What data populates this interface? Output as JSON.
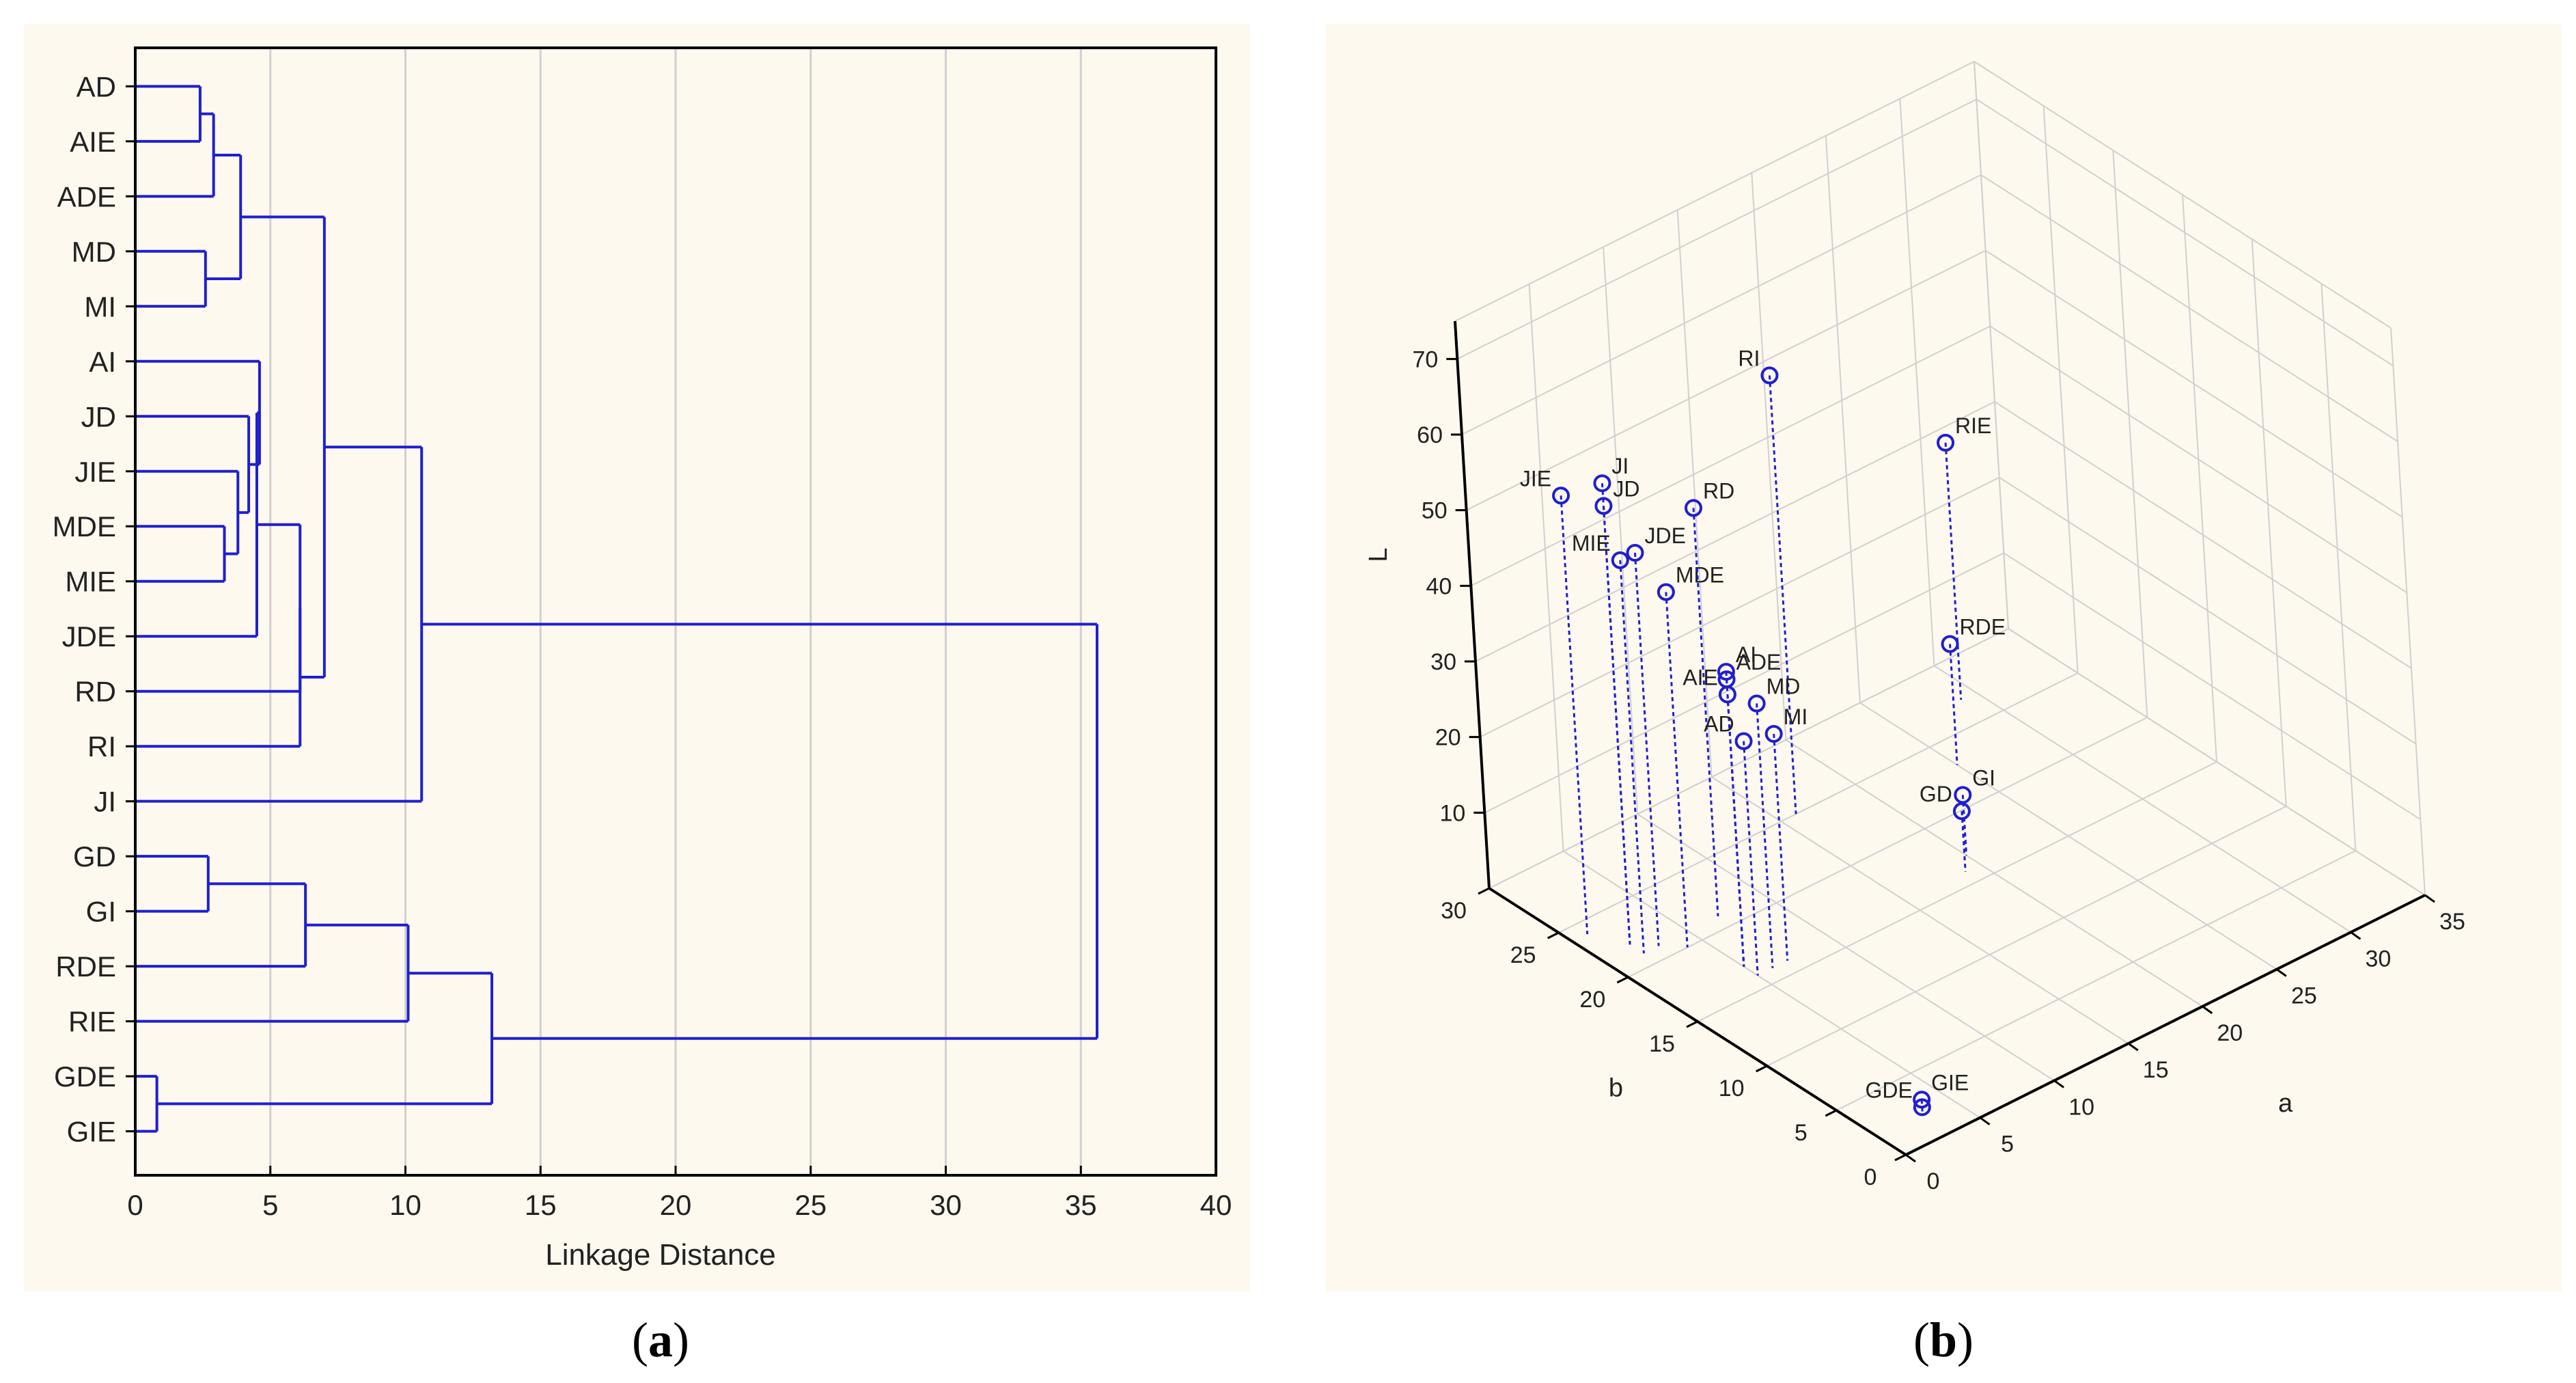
{
  "colors": {
    "series": "#1f1fcf",
    "grid": "#d0d0d0",
    "axis": "#000000",
    "panel_bg": "#fdf9ef"
  },
  "captions": {
    "a_open": "(",
    "a_letter": "a",
    "a_close": ")",
    "b_open": "(",
    "b_letter": "b",
    "b_close": ")"
  },
  "chart_data": [
    {
      "type": "dendrogram",
      "panel": "a",
      "xlabel": "Linkage Distance",
      "xlim": [
        0,
        40
      ],
      "xticks": [
        0,
        5,
        10,
        15,
        20,
        25,
        30,
        35,
        40
      ],
      "grid": "vertical",
      "leaves": [
        "AD",
        "AIE",
        "ADE",
        "MD",
        "MI",
        "AI",
        "JD",
        "JIE",
        "MDE",
        "MIE",
        "JDE",
        "RD",
        "RI",
        "JI",
        "GD",
        "GI",
        "RDE",
        "RIE",
        "GDE",
        "GIE"
      ],
      "merges": [
        {
          "a": "AD",
          "b": "AIE",
          "distance": 2.4
        },
        {
          "a": "AD+AIE",
          "b": "ADE",
          "distance": 2.9
        },
        {
          "a": "MD",
          "b": "MI",
          "distance": 2.6
        },
        {
          "a": "AD+AIE+ADE",
          "b": "MD+MI",
          "distance": 3.9
        },
        {
          "a": "MDE",
          "b": "MIE",
          "distance": 3.3
        },
        {
          "a": "MDE+MIE",
          "b": "JIE",
          "distance": 3.8
        },
        {
          "a": "JD",
          "b": "JIE+MDE+MIE",
          "distance": 4.2
        },
        {
          "a": "AI",
          "b": "JD+JIE+MDE+MIE",
          "distance": 4.6
        },
        {
          "a": "AI+JD+JIE+MDE+MIE",
          "b": "JDE",
          "distance": 4.5
        },
        {
          "a": "AI..JDE",
          "b": "RD",
          "distance": 6.1
        },
        {
          "a": "AI..RD",
          "b": "RI",
          "distance": 6.1
        },
        {
          "a": "AD..MI",
          "b": "AI..RI",
          "distance": 7.0
        },
        {
          "a": "AD..RI",
          "b": "JI",
          "distance": 10.6
        },
        {
          "a": "GD",
          "b": "GI",
          "distance": 2.7
        },
        {
          "a": "GD+GI",
          "b": "RDE",
          "distance": 6.3
        },
        {
          "a": "GD+GI+RDE",
          "b": "RIE",
          "distance": 10.1
        },
        {
          "a": "GDE",
          "b": "GIE",
          "distance": 0.8
        },
        {
          "a": "GD..RIE",
          "b": "GDE+GIE",
          "distance": 13.2
        },
        {
          "a": "AD..JI",
          "b": "GD..GIE",
          "distance": 35.6
        }
      ]
    },
    {
      "type": "scatter3d",
      "panel": "b",
      "xlabel": "a",
      "ylabel": "b",
      "zlabel": "L",
      "xlim": [
        0,
        35
      ],
      "ylim": [
        0,
        30
      ],
      "zlim": [
        0,
        70
      ],
      "xticks": [
        0,
        5,
        10,
        15,
        20,
        25,
        30,
        35
      ],
      "yticks": [
        0,
        5,
        10,
        15,
        20,
        25,
        30
      ],
      "zticks": [
        10,
        20,
        30,
        40,
        50,
        60,
        70
      ],
      "points": [
        {
          "label": "JI",
          "a": 2,
          "b": 22,
          "L": 61
        },
        {
          "label": "JD",
          "a": 2,
          "b": 22,
          "L": 58
        },
        {
          "label": "JIE",
          "a": 1,
          "b": 24,
          "L": 58
        },
        {
          "label": "MIE",
          "a": 2,
          "b": 21,
          "L": 52
        },
        {
          "label": "JDE",
          "a": 3,
          "b": 21,
          "L": 52
        },
        {
          "label": "MDE",
          "a": 4,
          "b": 20,
          "L": 47
        },
        {
          "label": "RD",
          "a": 7,
          "b": 21,
          "L": 54
        },
        {
          "label": "RI",
          "a": 16,
          "b": 25,
          "L": 58
        },
        {
          "label": "AI",
          "a": 5,
          "b": 17,
          "L": 39
        },
        {
          "label": "ADE",
          "a": 5,
          "b": 17,
          "L": 38
        },
        {
          "label": "AIE",
          "a": 5,
          "b": 17,
          "L": 36
        },
        {
          "label": "MD",
          "a": 6,
          "b": 16,
          "L": 35
        },
        {
          "label": "AD",
          "a": 5,
          "b": 16,
          "L": 31
        },
        {
          "label": "MI",
          "a": 7,
          "b": 16,
          "L": 30
        },
        {
          "label": "RIE",
          "a": 29,
          "b": 27,
          "L": 34
        },
        {
          "label": "RDE",
          "a": 25,
          "b": 23,
          "L": 16
        },
        {
          "label": "GI",
          "a": 20,
          "b": 17,
          "L": 8
        },
        {
          "label": "GD",
          "a": 19,
          "b": 16,
          "L": 8
        },
        {
          "label": "GIE",
          "a": 3,
          "b": 2,
          "L": 2
        },
        {
          "label": "GDE",
          "a": 3,
          "b": 2,
          "L": 1
        }
      ]
    }
  ]
}
